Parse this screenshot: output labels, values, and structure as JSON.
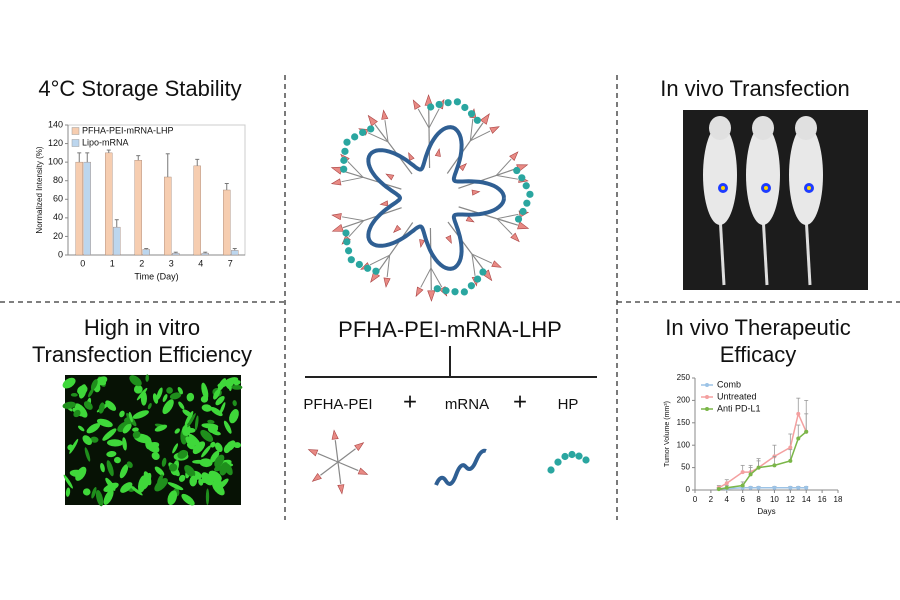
{
  "storage_panel": {
    "title": "4°C  Storage Stability",
    "chart": {
      "type": "bar",
      "x_label": "Time (Day)",
      "y_label": "Normalized Intensity (%)",
      "categories": [
        "0",
        "1",
        "2",
        "3",
        "4",
        "7"
      ],
      "series": [
        {
          "name": "PFHA-PEI-mRNA-LHP",
          "color": "#f6cdb0",
          "values": [
            100,
            110,
            102,
            84,
            96,
            70
          ],
          "errors": [
            10,
            3,
            5,
            25,
            7,
            7
          ]
        },
        {
          "name": "Lipo-mRNA",
          "color": "#bcd6ee",
          "values": [
            100,
            30,
            6,
            2,
            2,
            5
          ],
          "errors": [
            10,
            8,
            1,
            1,
            1,
            2
          ]
        }
      ],
      "ylim": [
        0,
        140
      ],
      "yticks": [
        0,
        20,
        40,
        60,
        80,
        100,
        120,
        140
      ],
      "legend": "upper left"
    }
  },
  "in_vitro_panel": {
    "title_lines": [
      "High in vitro",
      "Transfection Efficiency"
    ]
  },
  "center": {
    "label": "PFHA-PEI-mRNA-LHP",
    "components": [
      "PFHA-PEI",
      "mRNA",
      "HP"
    ],
    "operators": [
      "+",
      "+"
    ]
  },
  "in_vivo_panel": {
    "title": "In vivo Transfection"
  },
  "therapy_panel": {
    "title_lines": [
      "In vivo Therapeutic",
      "Efficacy"
    ],
    "chart": {
      "type": "line",
      "x_label": "Days",
      "y_label": "Tumor Volume (mm³)",
      "x": [
        3,
        4,
        6,
        7,
        8,
        10,
        12,
        13,
        14
      ],
      "series": [
        {
          "name": "Comb",
          "color": "#9cc3e6",
          "values": [
            3,
            3,
            5,
            5,
            5,
            5,
            5,
            5,
            5
          ],
          "errors": [
            2,
            2,
            3,
            3,
            3,
            3,
            3,
            3,
            3
          ]
        },
        {
          "name": "Untreated",
          "color": "#f4a0a0",
          "values": [
            5,
            15,
            40,
            40,
            50,
            75,
            95,
            170,
            130
          ],
          "errors": [
            5,
            8,
            15,
            15,
            20,
            25,
            30,
            35,
            70
          ]
        },
        {
          "name": "Anti PD-L1",
          "color": "#7ab648",
          "values": [
            2,
            5,
            10,
            35,
            50,
            55,
            65,
            115,
            130
          ],
          "errors": [
            3,
            5,
            8,
            15,
            15,
            20,
            25,
            30,
            40
          ]
        }
      ],
      "xlim": [
        0,
        18
      ],
      "xticks": [
        0,
        2,
        4,
        6,
        8,
        10,
        12,
        14,
        16,
        18
      ],
      "ylim": [
        0,
        250
      ],
      "yticks": [
        0,
        50,
        100,
        150,
        200,
        250
      ],
      "legend": "upper left"
    }
  }
}
